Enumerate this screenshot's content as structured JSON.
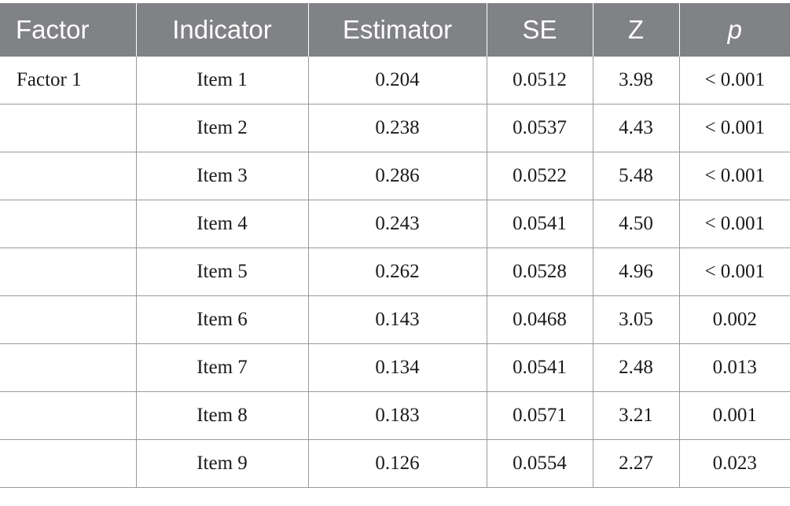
{
  "table": {
    "headers": [
      "Factor",
      "Indicator",
      "Estimator",
      "SE",
      "Z",
      "p"
    ],
    "rows": [
      [
        "Factor 1",
        "Item 1",
        "0.204",
        "0.0512",
        "3.98",
        "< 0.001"
      ],
      [
        "",
        "Item 2",
        "0.238",
        "0.0537",
        "4.43",
        "< 0.001"
      ],
      [
        "",
        "Item 3",
        "0.286",
        "0.0522",
        "5.48",
        "< 0.001"
      ],
      [
        "",
        "Item 4",
        "0.243",
        "0.0541",
        "4.50",
        "< 0.001"
      ],
      [
        "",
        "Item 5",
        "0.262",
        "0.0528",
        "4.96",
        "< 0.001"
      ],
      [
        "",
        "Item 6",
        "0.143",
        "0.0468",
        "3.05",
        "0.002"
      ],
      [
        "",
        "Item 7",
        "0.134",
        "0.0541",
        "2.48",
        "0.013"
      ],
      [
        "",
        "Item 8",
        "0.183",
        "0.0571",
        "3.21",
        "0.001"
      ],
      [
        "",
        "Item 9",
        "0.126",
        "0.0554",
        "2.27",
        "0.023"
      ]
    ]
  },
  "colors": {
    "header_bg": "#808285",
    "header_text": "#ffffff",
    "grid": "#9a9a9a"
  }
}
